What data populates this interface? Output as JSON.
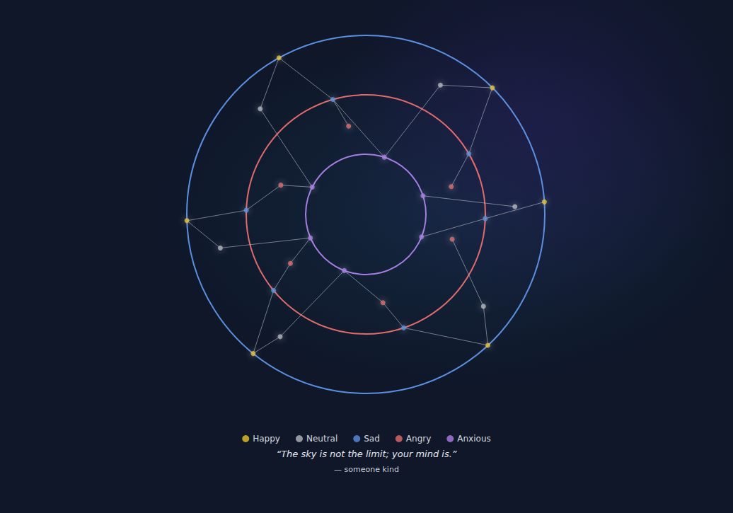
{
  "chart_data": {
    "type": "polar_scatter",
    "series": [
      {
        "name": "Happy",
        "color": "#e8c22a",
        "values": [
          119,
          45,
          4,
          313,
          231,
          182
        ]
      },
      {
        "name": "Neutral",
        "color": "#b3b6bd",
        "values": [
          135,
          60,
          3,
          322,
          235,
          193
        ]
      },
      {
        "name": "Sad",
        "color": "#5b8fe0",
        "values": [
          106,
          30.5,
          358,
          288.5,
          219.5,
          178
        ]
      },
      {
        "name": "Angry",
        "color": "#e06b6b",
        "values": [
          101,
          18,
          344,
          281,
          213,
          161
        ]
      },
      {
        "name": "Anxious",
        "color": "#a77de3",
        "values": [
          72,
          18,
          338,
          249,
          203,
          153
        ]
      }
    ],
    "links": [
      [
        [
          "Happy",
          0
        ],
        [
          "Neutral",
          0
        ]
      ],
      [
        [
          "Happy",
          0
        ],
        [
          "Sad",
          0
        ]
      ],
      [
        [
          "Neutral",
          0
        ],
        [
          "Anxious",
          5
        ]
      ],
      [
        [
          "Sad",
          0
        ],
        [
          "Anxious",
          0
        ]
      ],
      [
        [
          "Angry",
          0
        ],
        [
          "Sad",
          0
        ]
      ],
      [
        [
          "Neutral",
          1
        ],
        [
          "Anxious",
          0
        ]
      ],
      [
        [
          "Happy",
          1
        ],
        [
          "Neutral",
          1
        ]
      ],
      [
        [
          "Happy",
          1
        ],
        [
          "Sad",
          1
        ]
      ],
      [
        [
          "Sad",
          1
        ],
        [
          "Angry",
          1
        ]
      ],
      [
        [
          "Happy",
          2
        ],
        [
          "Sad",
          2
        ]
      ],
      [
        [
          "Neutral",
          2
        ],
        [
          "Anxious",
          1
        ]
      ],
      [
        [
          "Anxious",
          2
        ],
        [
          "Sad",
          2
        ]
      ],
      [
        [
          "Angry",
          2
        ],
        [
          "Neutral",
          3
        ]
      ],
      [
        [
          "Neutral",
          3
        ],
        [
          "Happy",
          3
        ]
      ],
      [
        [
          "Sad",
          3
        ],
        [
          "Happy",
          3
        ]
      ],
      [
        [
          "Angry",
          3
        ],
        [
          "Anxious",
          3
        ]
      ],
      [
        [
          "Angry",
          3
        ],
        [
          "Sad",
          3
        ]
      ],
      [
        [
          "Happy",
          4
        ],
        [
          "Neutral",
          4
        ]
      ],
      [
        [
          "Happy",
          4
        ],
        [
          "Sad",
          4
        ]
      ],
      [
        [
          "Neutral",
          4
        ],
        [
          "Anxious",
          3
        ]
      ],
      [
        [
          "Sad",
          4
        ],
        [
          "Angry",
          4
        ]
      ],
      [
        [
          "Angry",
          4
        ],
        [
          "Anxious",
          4
        ]
      ],
      [
        [
          "Happy",
          5
        ],
        [
          "Sad",
          5
        ]
      ],
      [
        [
          "Happy",
          5
        ],
        [
          "Neutral",
          5
        ]
      ],
      [
        [
          "Neutral",
          5
        ],
        [
          "Anxious",
          4
        ]
      ],
      [
        [
          "Sad",
          5
        ],
        [
          "Angry",
          5
        ]
      ],
      [
        [
          "Angry",
          5
        ],
        [
          "Anxious",
          5
        ]
      ]
    ],
    "xlim": [
      0,
      360
    ],
    "tick_labels": false,
    "legend": "bottom",
    "quote": "“The sky is not the limit; your mind is.”",
    "attribution": "— someone kind"
  }
}
